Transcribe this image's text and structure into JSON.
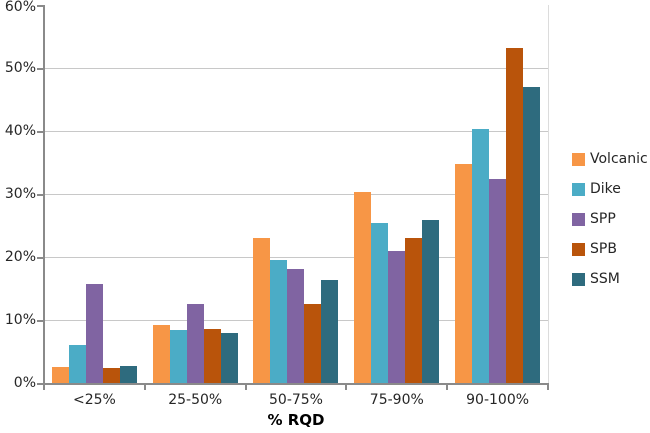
{
  "chart_data": {
    "type": "bar",
    "title": "",
    "xlabel": "% RQD",
    "ylabel": "",
    "categories": [
      "<25%",
      "25-50%",
      "50-75%",
      "75-90%",
      "90-100%"
    ],
    "series": [
      {
        "name": "Volcanic",
        "color": "#F79646",
        "values": [
          2.5,
          9.2,
          23.1,
          30.3,
          34.7
        ]
      },
      {
        "name": "Dike",
        "color": "#4BACC6",
        "values": [
          6.1,
          8.4,
          19.6,
          25.4,
          40.4
        ]
      },
      {
        "name": "SPP",
        "color": "#8064A2",
        "values": [
          15.8,
          12.6,
          18.1,
          20.9,
          32.4
        ]
      },
      {
        "name": "SPB",
        "color": "#B9540B",
        "values": [
          2.4,
          8.6,
          12.6,
          23.1,
          53.2
        ]
      },
      {
        "name": "SSM",
        "color": "#2E6B7E",
        "values": [
          2.7,
          7.9,
          16.3,
          25.9,
          47.0
        ]
      }
    ],
    "ylim": [
      0,
      60
    ],
    "ytick_step": 10,
    "ytick_suffix": "%",
    "grid": true,
    "legend_position": "right"
  },
  "styles": {
    "gridline_color": "#C8C8C8",
    "axis_color": "#8A8A8A",
    "plot_border_color": "#DCDCDC",
    "text_color": "#262626"
  }
}
